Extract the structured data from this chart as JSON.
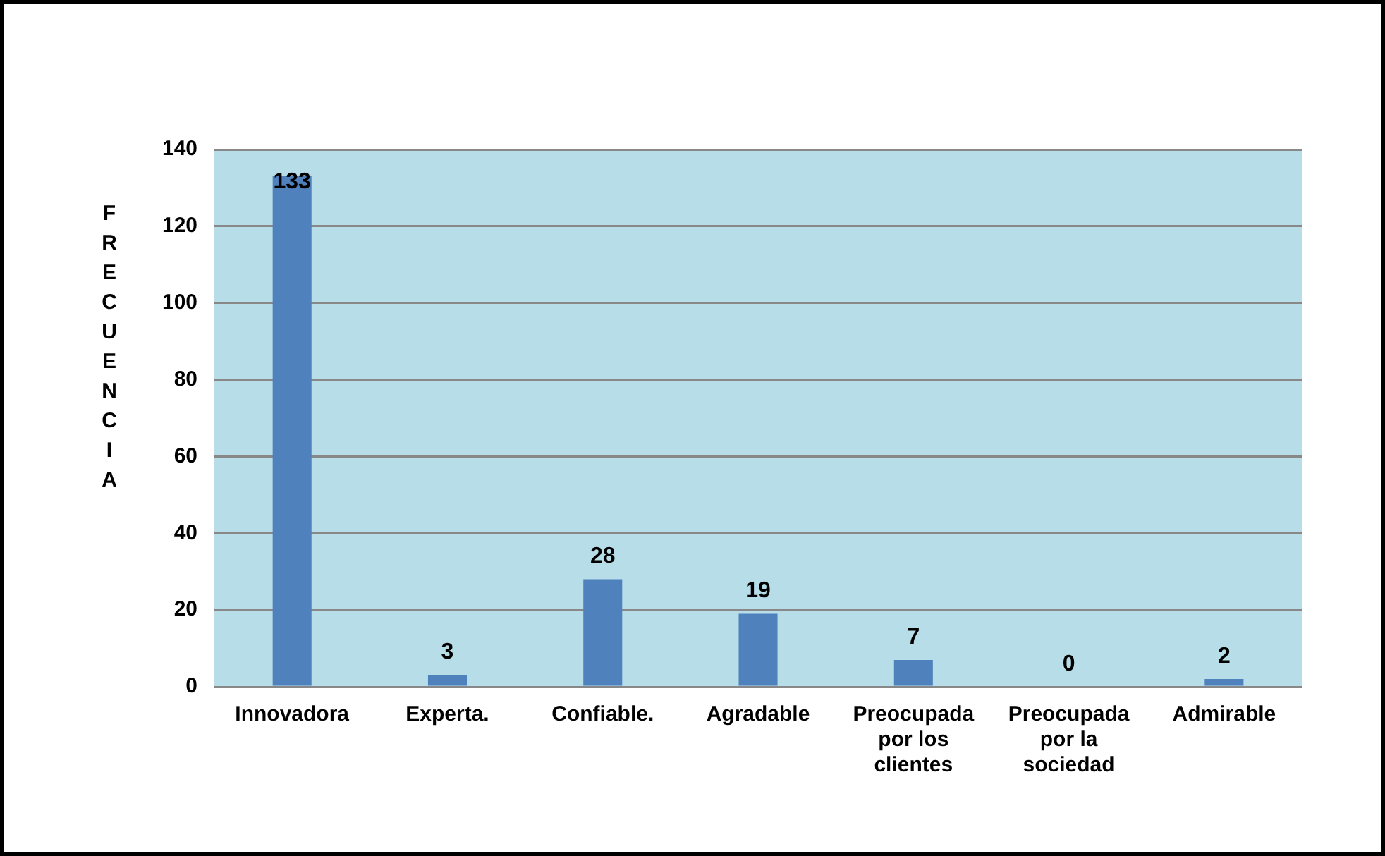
{
  "chart_data": {
    "type": "bar",
    "ylabel": "FRECUENCIA",
    "categories": [
      "Innovadora",
      "Experta.",
      "Confiable.",
      "Agradable",
      "Preocupada por los clientes",
      "Preocupada por la sociedad",
      "Admirable"
    ],
    "values": [
      133,
      3,
      28,
      19,
      7,
      0,
      2
    ],
    "color": "#4f81bd",
    "ylim": [
      0,
      140
    ],
    "yticks": [
      0,
      20,
      40,
      60,
      80,
      100,
      120,
      140
    ],
    "grid": "y",
    "legend": false,
    "data_labels": true
  }
}
